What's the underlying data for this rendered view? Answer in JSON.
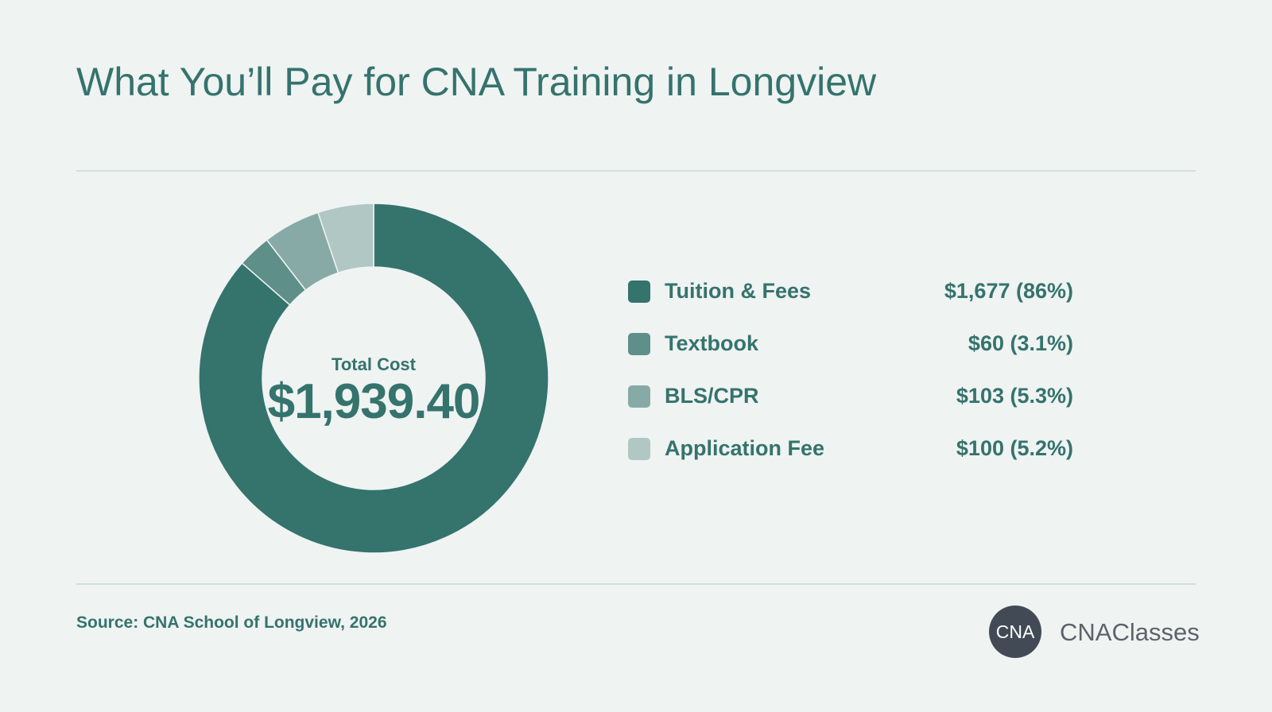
{
  "title": "What You’ll Pay for CNA Training in Longview",
  "chart_data": {
    "type": "pie",
    "donut": true,
    "center_label": "Total Cost",
    "center_value": "$1,939.40",
    "slices": [
      {
        "label": "Tuition & Fees",
        "value": 1677,
        "display": "$1,677 (86%)",
        "percent": 86,
        "color": "#35736d"
      },
      {
        "label": "Textbook",
        "value": 60,
        "display": "$60 (3.1%)",
        "percent": 3.1,
        "color": "#5e8f89"
      },
      {
        "label": "BLS/CPR",
        "value": 103,
        "display": "$103 (5.3%)",
        "percent": 5.3,
        "color": "#88aaa6"
      },
      {
        "label": "Application Fee",
        "value": 100,
        "display": "$100 (5.2%)",
        "percent": 5.2,
        "color": "#b0c7c4"
      }
    ],
    "legend_position": "right"
  },
  "source": "Source: CNA School of Longview, 2026",
  "brand": {
    "badge_text": "CNA",
    "name": "CNAClasses"
  }
}
